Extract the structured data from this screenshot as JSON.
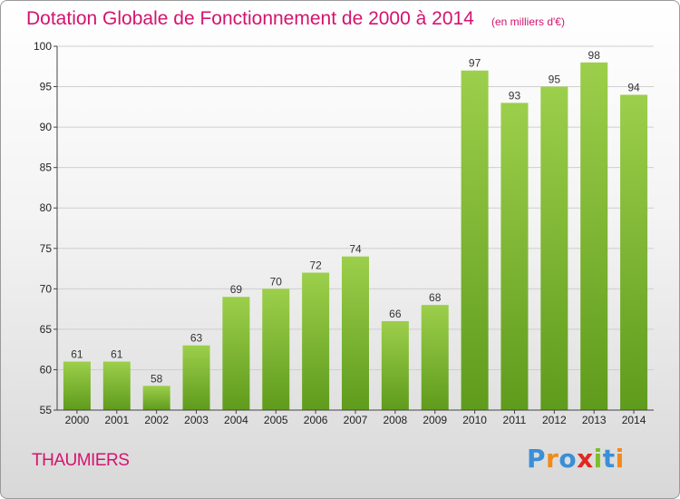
{
  "header": {
    "title": "Dotation Globale de Fonctionnement de 2000 à 2014",
    "unit": "(en milliers d'€)"
  },
  "place": "THAUMIERS",
  "logo": {
    "letters": [
      "P",
      "r",
      "o",
      "x",
      "i",
      "t",
      "i"
    ],
    "colors": [
      "#3a8fd6",
      "#f08a1c",
      "#3a8fd6",
      "#e0281f",
      "#7bbf2a",
      "#3a8fd6",
      "#f08a1c"
    ]
  },
  "chart_data": {
    "type": "bar",
    "categories": [
      "2000",
      "2001",
      "2002",
      "2003",
      "2004",
      "2005",
      "2006",
      "2007",
      "2008",
      "2009",
      "2010",
      "2011",
      "2012",
      "2013",
      "2014"
    ],
    "values": [
      61,
      61,
      58,
      63,
      69,
      70,
      72,
      74,
      66,
      68,
      97,
      93,
      95,
      98,
      94
    ],
    "title": "Dotation Globale de Fonctionnement de 2000 à 2014",
    "subtitle": "(en milliers d'€)",
    "ylim": [
      55,
      100
    ],
    "yticks": [
      55,
      60,
      65,
      70,
      75,
      80,
      85,
      90,
      95,
      100
    ],
    "grid": true,
    "colors": {
      "bar_light": "#9ccf4b",
      "bar_dark": "#5f9b1c",
      "grid": "#cfcfcf",
      "title": "#d4136f"
    }
  }
}
